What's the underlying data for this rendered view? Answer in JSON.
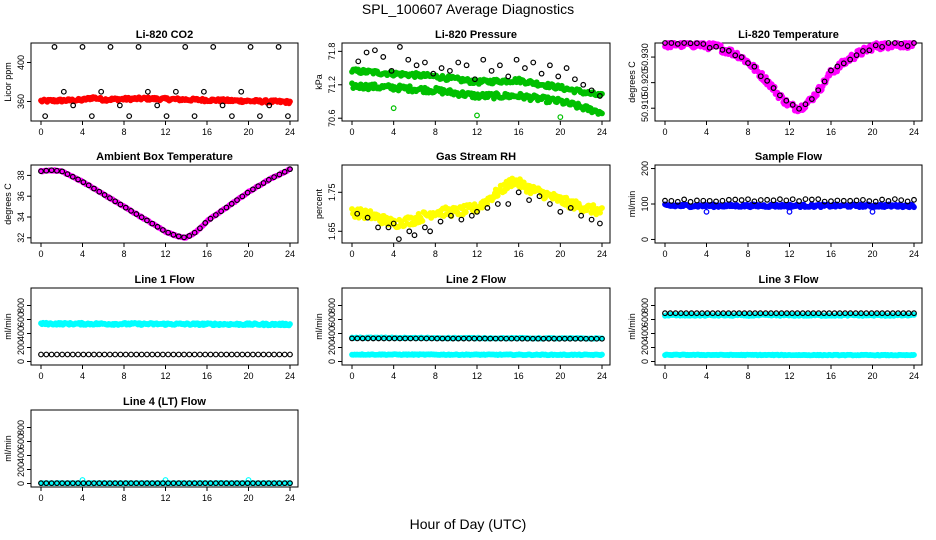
{
  "page": {
    "title": "SPL_100607  Average Diagnostics",
    "xlabel": "Hour of Day (UTC)"
  },
  "chart_data": [
    {
      "type": "scatter",
      "title": "Li-820 CO2",
      "ylabel": "Licor ppm",
      "xlim": [
        0,
        24
      ],
      "xticks": [
        0,
        4,
        8,
        12,
        16,
        20,
        24
      ],
      "ylim": [
        340,
        420
      ],
      "yticks": [
        360,
        400
      ],
      "series": [
        {
          "color": "#ff0000",
          "pattern": "band",
          "style": "dense",
          "x": [
            0.0,
            2,
            4,
            5,
            6,
            8,
            10,
            12,
            14,
            16,
            18,
            20,
            22,
            24.0
          ],
          "y": [
            360.5,
            361.0,
            361.5,
            364.0,
            362.0,
            362.5,
            363.0,
            362.5,
            362.0,
            361.5,
            361.0,
            360.5,
            360.0,
            359.5
          ],
          "spread": 1.5,
          "n": 240
        },
        {
          "color": "#000000",
          "style": "open",
          "x": [
            0.4,
            1.3,
            2.2,
            3.1,
            4.0,
            4.9,
            5.8,
            6.7,
            7.6,
            8.5,
            9.4,
            10.3,
            11.2,
            12.1,
            13.0,
            13.9,
            14.8,
            15.7,
            16.6,
            17.5,
            18.4,
            19.3,
            20.2,
            21.1,
            22.0,
            22.9,
            23.8
          ],
          "y": [
            345,
            416,
            370,
            356,
            416,
            345,
            370,
            416,
            356,
            345,
            416,
            370,
            356,
            345,
            370,
            416,
            345,
            370,
            416,
            356,
            345,
            370,
            416,
            345,
            356,
            416,
            345
          ]
        }
      ]
    },
    {
      "type": "scatter",
      "title": "Li-820 Pressure",
      "ylabel": "kPa",
      "xlim": [
        0,
        24
      ],
      "xticks": [
        0,
        4,
        8,
        12,
        16,
        20,
        24
      ],
      "ylim": [
        70.55,
        71.95
      ],
      "yticks": [
        70.6,
        71.2,
        71.8
      ],
      "yticklabels": [
        "70.6",
        "71.2",
        "71.8"
      ],
      "series": [
        {
          "color": "#00c000",
          "pattern": "band",
          "style": "dense",
          "x": [
            0.0,
            4,
            8,
            12,
            16,
            20,
            24.0
          ],
          "y": [
            71.45,
            71.4,
            71.35,
            71.25,
            71.28,
            71.15,
            71.0
          ],
          "spread": 0.04,
          "n": 200
        },
        {
          "color": "#00c000",
          "pattern": "band",
          "style": "dense",
          "x": [
            0.0,
            4,
            8,
            12,
            16,
            20,
            24.0
          ],
          "y": [
            71.18,
            71.15,
            71.1,
            71.0,
            71.0,
            70.9,
            70.7
          ],
          "spread": 0.05,
          "n": 200
        },
        {
          "color": "#00c000",
          "style": "open",
          "x": [
            4.0,
            12.0,
            20.0
          ],
          "y": [
            70.78,
            70.65,
            70.62
          ]
        },
        {
          "color": "#000000",
          "style": "open",
          "x": [
            0.6,
            1.4,
            2.2,
            3.0,
            3.8,
            4.6,
            5.4,
            6.2,
            7.0,
            7.8,
            8.6,
            9.4,
            10.2,
            11.0,
            11.8,
            12.6,
            13.4,
            14.2,
            15.0,
            15.8,
            16.6,
            17.4,
            18.2,
            19.0,
            19.8,
            20.6,
            21.4,
            22.2,
            23.0,
            23.8
          ],
          "y": [
            71.62,
            71.78,
            71.82,
            71.7,
            71.45,
            71.88,
            71.65,
            71.55,
            71.6,
            71.4,
            71.5,
            71.45,
            71.6,
            71.55,
            71.3,
            71.65,
            71.45,
            71.55,
            71.35,
            71.65,
            71.5,
            71.6,
            71.4,
            71.55,
            71.35,
            71.5,
            71.3,
            71.2,
            71.1,
            71.0
          ]
        }
      ]
    },
    {
      "type": "scatter",
      "title": "Li-820 Temperature",
      "ylabel": "degrees C",
      "xlim": [
        0,
        24
      ],
      "xticks": [
        0,
        4,
        8,
        12,
        16,
        20,
        24
      ],
      "ylim": [
        50.905,
        50.9355
      ],
      "yticks": [
        50.91,
        50.92,
        50.93
      ],
      "yticklabels": [
        "50.910",
        "50.920",
        "50.930"
      ],
      "series": [
        {
          "color": "#ff00ff",
          "pattern": "band",
          "style": "dense",
          "x": [
            0.0,
            3,
            5,
            7,
            8,
            9,
            10,
            11,
            12,
            13,
            14,
            15,
            16,
            18,
            20,
            22,
            24.0
          ],
          "y": [
            50.935,
            50.935,
            50.934,
            50.931,
            50.928,
            50.924,
            50.92,
            50.915,
            50.911,
            50.91,
            50.913,
            50.918,
            50.924,
            50.93,
            50.934,
            50.935,
            50.935
          ],
          "spread": 0.0015,
          "n": 260
        },
        {
          "color": "#000000",
          "pattern": "band",
          "style": "open",
          "x": [
            0.0,
            3,
            5,
            7,
            8,
            9,
            10,
            11,
            12,
            13,
            14,
            15,
            16,
            18,
            20,
            22,
            24.0
          ],
          "y": [
            50.935,
            50.935,
            50.934,
            50.931,
            50.928,
            50.924,
            50.92,
            50.915,
            50.911,
            50.91,
            50.913,
            50.918,
            50.924,
            50.93,
            50.934,
            50.935,
            50.935
          ],
          "spread": 0.0008,
          "n": 40
        }
      ]
    },
    {
      "type": "scatter",
      "title": "Ambient Box Temperature",
      "ylabel": "degrees C",
      "xlim": [
        0,
        24
      ],
      "xticks": [
        0,
        4,
        8,
        12,
        16,
        20,
        24
      ],
      "ylim": [
        31.5,
        39.0
      ],
      "yticks": [
        32,
        34,
        36,
        38
      ],
      "series": [
        {
          "color": "#ff00ff",
          "pattern": "band",
          "style": "dense",
          "x": [
            0.0,
            1,
            2,
            4,
            6,
            8,
            10,
            12,
            13,
            14,
            15,
            16,
            18,
            20,
            22,
            24.0
          ],
          "y": [
            38.4,
            38.5,
            38.4,
            37.4,
            36.2,
            35.0,
            33.8,
            32.6,
            32.2,
            32.0,
            32.6,
            33.6,
            35.0,
            36.4,
            37.6,
            38.6
          ],
          "spread": 0.05,
          "n": 200
        },
        {
          "color": "#000000",
          "pattern": "band",
          "style": "open",
          "x": [
            0.0,
            1,
            2,
            4,
            6,
            8,
            10,
            12,
            13,
            14,
            15,
            16,
            18,
            20,
            22,
            24.0
          ],
          "y": [
            38.4,
            38.5,
            38.4,
            37.4,
            36.2,
            35.0,
            33.8,
            32.6,
            32.2,
            32.0,
            32.6,
            33.6,
            35.0,
            36.4,
            37.6,
            38.6
          ],
          "spread": 0.0,
          "n": 48
        }
      ]
    },
    {
      "type": "scatter",
      "title": "Gas Stream RH",
      "ylabel": "percent",
      "xlim": [
        0,
        24
      ],
      "xticks": [
        0,
        4,
        8,
        12,
        16,
        20,
        24
      ],
      "ylim": [
        1.62,
        1.82
      ],
      "yticks": [
        1.65,
        1.75
      ],
      "yticklabels": [
        "1.65",
        "1.75"
      ],
      "series": [
        {
          "color": "#ffff00",
          "pattern": "band",
          "style": "dense",
          "x": [
            0.0,
            2,
            4,
            6,
            8,
            10,
            12,
            14,
            15.5,
            17,
            19,
            21,
            24.0
          ],
          "y": [
            1.7,
            1.69,
            1.67,
            1.68,
            1.7,
            1.7,
            1.71,
            1.75,
            1.78,
            1.76,
            1.74,
            1.72,
            1.7
          ],
          "spread": 0.012,
          "n": 260
        },
        {
          "color": "#000000",
          "style": "open",
          "x": [
            0.5,
            1.5,
            2.5,
            3.5,
            4.0,
            4.5,
            5.5,
            6.0,
            7.0,
            7.5,
            8.5,
            9.5,
            10.5,
            11.5,
            12.0,
            13.0,
            14.0,
            15.0,
            16.0,
            17.0,
            18.0,
            19.0,
            20.0,
            21.0,
            22.0,
            23.0,
            23.8
          ],
          "y": [
            1.695,
            1.685,
            1.66,
            1.66,
            1.67,
            1.63,
            1.65,
            1.64,
            1.66,
            1.65,
            1.675,
            1.69,
            1.68,
            1.69,
            1.7,
            1.71,
            1.72,
            1.72,
            1.75,
            1.73,
            1.74,
            1.72,
            1.7,
            1.71,
            1.69,
            1.68,
            1.67
          ]
        }
      ]
    },
    {
      "type": "scatter",
      "title": "Sample Flow",
      "ylabel": "ml/min",
      "xlim": [
        0,
        24
      ],
      "xticks": [
        0,
        4,
        8,
        12,
        16,
        20,
        24
      ],
      "ylim": [
        -10,
        210
      ],
      "yticks": [
        0,
        100,
        200
      ],
      "series": [
        {
          "color": "#0000ff",
          "pattern": "band",
          "style": "dense",
          "x": [
            0.0,
            24.0
          ],
          "y": [
            95,
            95
          ],
          "spread": 4,
          "n": 220
        },
        {
          "color": "#0000ff",
          "style": "open",
          "x": [
            4.0,
            12.0,
            20.0
          ],
          "y": [
            78,
            78,
            78
          ]
        },
        {
          "color": "#000000",
          "pattern": "band",
          "style": "open",
          "x": [
            0.0,
            24.0
          ],
          "y": [
            110,
            110
          ],
          "spread": 4,
          "n": 40
        }
      ]
    },
    {
      "type": "scatter",
      "title": "Line 1 Flow",
      "ylabel": "ml/min",
      "xlim": [
        0,
        24
      ],
      "xticks": [
        0,
        4,
        8,
        12,
        16,
        20,
        24
      ],
      "ylim": [
        -50,
        1050
      ],
      "yticks": [
        0,
        200,
        400,
        600,
        800
      ],
      "series": [
        {
          "color": "#00ffff",
          "pattern": "band",
          "style": "dense",
          "x": [
            0.0,
            24.0
          ],
          "y": [
            540,
            530
          ],
          "spread": 15,
          "n": 240
        },
        {
          "color": "#000000",
          "pattern": "band",
          "style": "open",
          "x": [
            0.0,
            24.0
          ],
          "y": [
            100,
            100
          ],
          "spread": 0,
          "n": 48
        }
      ]
    },
    {
      "type": "scatter",
      "title": "Line 2 Flow",
      "ylabel": "ml/min",
      "xlim": [
        0,
        24
      ],
      "xticks": [
        0,
        4,
        8,
        12,
        16,
        20,
        24
      ],
      "ylim": [
        -50,
        1050
      ],
      "yticks": [
        0,
        200,
        400,
        600,
        800
      ],
      "series": [
        {
          "color": "#00ffff",
          "pattern": "band",
          "style": "dense",
          "x": [
            0.0,
            24.0
          ],
          "y": [
            100,
            95
          ],
          "spread": 6,
          "n": 200
        },
        {
          "color": "#00ffff",
          "pattern": "band",
          "style": "dense",
          "x": [
            0.0,
            24.0
          ],
          "y": [
            340,
            330
          ],
          "spread": 6,
          "n": 120
        },
        {
          "color": "#000000",
          "pattern": "band",
          "style": "open",
          "x": [
            0.0,
            24.0
          ],
          "y": [
            330,
            325
          ],
          "spread": 0,
          "n": 48
        }
      ]
    },
    {
      "type": "scatter",
      "title": "Line 3 Flow",
      "ylabel": "ml/min",
      "xlim": [
        0,
        24
      ],
      "xticks": [
        0,
        4,
        8,
        12,
        16,
        20,
        24
      ],
      "ylim": [
        -50,
        1050
      ],
      "yticks": [
        0,
        200,
        400,
        600,
        800
      ],
      "series": [
        {
          "color": "#00ffff",
          "pattern": "band",
          "style": "dense",
          "x": [
            0.0,
            24.0
          ],
          "y": [
            660,
            660
          ],
          "spread": 10,
          "n": 200
        },
        {
          "color": "#00ffff",
          "pattern": "band",
          "style": "dense",
          "x": [
            0.0,
            24.0
          ],
          "y": [
            95,
            90
          ],
          "spread": 5,
          "n": 200
        },
        {
          "color": "#000000",
          "pattern": "band",
          "style": "open",
          "x": [
            0.0,
            24.0
          ],
          "y": [
            690,
            690
          ],
          "spread": 0,
          "n": 48
        }
      ]
    },
    {
      "type": "scatter",
      "title": "Line 4 (LT) Flow",
      "ylabel": "ml/min",
      "xlim": [
        0,
        24
      ],
      "xticks": [
        0,
        4,
        8,
        12,
        16,
        20,
        24
      ],
      "ylim": [
        -50,
        1050
      ],
      "yticks": [
        0,
        200,
        400,
        600,
        800
      ],
      "series": [
        {
          "color": "#00ffff",
          "pattern": "band",
          "style": "dense",
          "x": [
            0.0,
            24.0
          ],
          "y": [
            5,
            5
          ],
          "spread": 2,
          "n": 120
        },
        {
          "color": "#00ffff",
          "style": "open",
          "x": [
            4.0,
            12.0,
            20.0
          ],
          "y": [
            50,
            50,
            50
          ]
        },
        {
          "color": "#000000",
          "pattern": "band",
          "style": "open",
          "x": [
            0.0,
            24.0
          ],
          "y": [
            5,
            5
          ],
          "spread": 0,
          "n": 48
        }
      ]
    }
  ]
}
